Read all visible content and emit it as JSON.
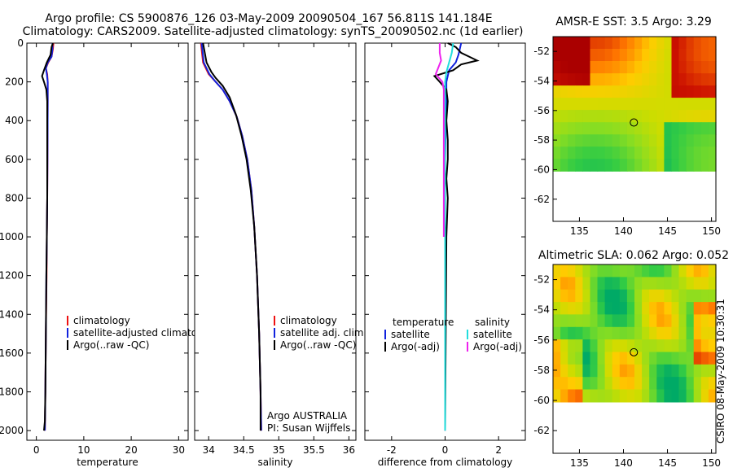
{
  "title_line1": "Argo profile: CS 5900876_126 03-May-2009 20090504_167 56.811S 141.184E",
  "title_line2": "Climatology: CARS2009. Satellite-adjusted climatology: synTS_20090502.nc (1d earlier)",
  "credit": "CSIRO 08-May-2009 10:30:31",
  "colors": {
    "red": "#ee1111",
    "blue": "#1122dd",
    "black": "#000000",
    "cyan": "#22dddd",
    "magenta": "#ee22ee"
  },
  "chart_data": [
    {
      "type": "line",
      "id": "temperature",
      "xlabel": "temperature",
      "ylabel": "",
      "xlim": [
        -2,
        32
      ],
      "ylim": [
        0,
        2050
      ],
      "xticks": [
        0,
        10,
        20,
        30
      ],
      "yticks": [
        0,
        200,
        400,
        600,
        800,
        1000,
        1200,
        1400,
        1600,
        1800,
        2000
      ],
      "legend": {
        "position": "lower-right",
        "entries": [
          "climatology",
          "satellite-adjusted climatology",
          "Argo(..raw -QC)"
        ]
      },
      "series": [
        {
          "name": "climatology",
          "color": "red",
          "x": [
            3.6,
            3.5,
            3.2,
            2.5,
            2.0,
            2.3,
            2.4,
            2.4,
            2.35,
            2.3,
            2.2,
            2.15,
            2.0,
            1.9,
            1.8
          ],
          "y": [
            0,
            30,
            70,
            100,
            130,
            160,
            200,
            300,
            600,
            800,
            1000,
            1200,
            1500,
            1800,
            2000
          ]
        },
        {
          "name": "satellite-adjusted climatology",
          "color": "blue",
          "x": [
            3.4,
            3.4,
            3.2,
            2.4,
            2.0,
            2.2,
            2.4,
            2.4,
            2.35,
            2.3,
            2.2,
            2.1,
            2.0,
            1.9,
            1.8
          ],
          "y": [
            0,
            30,
            70,
            100,
            130,
            160,
            200,
            300,
            600,
            800,
            1000,
            1200,
            1500,
            1800,
            2000
          ]
        },
        {
          "name": "Argo(..raw -QC)",
          "color": "black",
          "x": [
            3.5,
            3.2,
            3.0,
            2.2,
            1.6,
            1.2,
            1.6,
            2.1,
            2.3,
            2.3,
            2.3,
            2.2,
            2.1,
            2.0,
            1.9,
            1.8,
            1.6
          ],
          "y": [
            0,
            20,
            60,
            100,
            140,
            170,
            200,
            240,
            300,
            500,
            800,
            1000,
            1200,
            1500,
            1800,
            1950,
            2000
          ]
        }
      ]
    },
    {
      "type": "line",
      "id": "salinity",
      "xlabel": "salinity",
      "ylabel": "",
      "xlim": [
        33.8,
        36.1
      ],
      "ylim": [
        0,
        2050
      ],
      "xticks": [
        34,
        34.5,
        35,
        35.5,
        36
      ],
      "legend": {
        "position": "lower-right",
        "entries": [
          "climatology",
          "satellite adj. clim.",
          "Argo(..raw -QC)"
        ]
      },
      "annotations": [
        "Argo AUSTRALIA",
        "PI: Susan Wijffels"
      ],
      "series": [
        {
          "name": "climatology",
          "color": "red",
          "x": [
            33.89,
            33.92,
            34.0,
            34.1,
            34.2,
            34.3,
            34.4,
            34.48,
            34.55,
            34.61,
            34.65,
            34.69,
            34.72,
            34.74,
            34.75
          ],
          "y": [
            0,
            100,
            160,
            200,
            240,
            300,
            380,
            480,
            600,
            760,
            950,
            1200,
            1500,
            1800,
            2000
          ]
        },
        {
          "name": "satellite adj. clim.",
          "color": "blue",
          "x": [
            33.9,
            33.93,
            34.01,
            34.1,
            34.2,
            34.3,
            34.4,
            34.48,
            34.55,
            34.61,
            34.65,
            34.69,
            34.72,
            34.74,
            34.75
          ],
          "y": [
            0,
            100,
            160,
            200,
            240,
            300,
            380,
            480,
            600,
            760,
            950,
            1200,
            1500,
            1800,
            2000
          ]
        },
        {
          "name": "Argo(..raw -QC)",
          "color": "black",
          "x": [
            33.92,
            33.97,
            34.04,
            34.1,
            34.2,
            34.3,
            34.39,
            34.47,
            34.54,
            34.6,
            34.65,
            34.69,
            34.72,
            34.74,
            34.74
          ],
          "y": [
            0,
            100,
            150,
            180,
            220,
            280,
            370,
            480,
            600,
            760,
            950,
            1200,
            1500,
            1800,
            2000
          ]
        }
      ]
    },
    {
      "type": "line",
      "id": "difference",
      "xlabel": "difference from climatology",
      "ylabel": "",
      "xlim": [
        -3.0,
        3.0
      ],
      "ylim": [
        0,
        2050
      ],
      "xticks": [
        -2,
        0,
        2
      ],
      "legend": {
        "position": "lower-center",
        "groups": [
          {
            "heading": "temperature",
            "entries": [
              "satellite",
              "Argo(-adj)"
            ]
          },
          {
            "heading": "salinity",
            "entries": [
              "satellite",
              "Argo(-adj)"
            ]
          }
        ]
      },
      "series": [
        {
          "name": "temperature satellite",
          "color": "blue",
          "x": [
            0.6,
            0.55,
            0.5,
            0.4,
            0.15,
            0.05,
            0.05,
            0.0,
            0.0,
            0.0,
            0.0
          ],
          "y": [
            0,
            30,
            60,
            100,
            140,
            200,
            300,
            600,
            1000,
            1500,
            2000
          ]
        },
        {
          "name": "temperature Argo(-adj)",
          "color": "black",
          "x": [
            0.1,
            0.4,
            0.6,
            1.2,
            0.6,
            0.3,
            -0.4,
            -0.2,
            0.05,
            0.1,
            0.05,
            0.1,
            0.1,
            0.05,
            0.1,
            0.05,
            0.0
          ],
          "y": [
            0,
            20,
            50,
            90,
            110,
            140,
            170,
            200,
            240,
            300,
            400,
            500,
            600,
            700,
            800,
            1000,
            2000
          ]
        },
        {
          "name": "salinity satellite",
          "color": "cyan",
          "x": [
            0.3,
            0.25,
            0.15,
            0.05,
            0.0,
            0.0,
            0.0,
            0.0,
            0.0
          ],
          "y": [
            0,
            50,
            100,
            150,
            200,
            300,
            600,
            1000,
            2000
          ]
        },
        {
          "name": "salinity Argo(-adj)",
          "color": "magenta",
          "x": [
            -0.2,
            -0.2,
            -0.15,
            -0.35,
            -0.1,
            -0.05,
            -0.05,
            -0.05,
            -0.05
          ],
          "y": [
            0,
            50,
            90,
            160,
            200,
            240,
            300,
            600,
            1000
          ]
        }
      ]
    },
    {
      "type": "heatmap",
      "id": "sst_map",
      "title": "AMSR-E SST: 3.5 Argo: 3.29",
      "xlim": [
        132,
        150.5
      ],
      "ylim": [
        -63.5,
        -51
      ],
      "xticks": [
        135,
        140,
        145,
        150
      ],
      "yticks": [
        -52,
        -54,
        -56,
        -58,
        -60,
        -62
      ],
      "data_extent_lat": [
        -60.1,
        -51
      ],
      "marker": {
        "lon": 141.184,
        "lat": -56.811
      },
      "palette": [
        "#00aa66",
        "#33cc44",
        "#88dd22",
        "#ccdd00",
        "#ffcc00",
        "#ff7700",
        "#cc1100",
        "#aa0000"
      ],
      "grid_rows": 11,
      "grid_cols": 22
    },
    {
      "type": "heatmap",
      "id": "sla_map",
      "title": "Altimetric SLA: 0.062 Argo: 0.052",
      "xlim": [
        132,
        150.5
      ],
      "ylim": [
        -63.5,
        -51
      ],
      "xticks": [
        135,
        140,
        145,
        150
      ],
      "yticks": [
        -52,
        -54,
        -56,
        -58,
        -60,
        -62
      ],
      "data_extent_lat": [
        -60.1,
        -51
      ],
      "marker": {
        "lon": 141.184,
        "lat": -56.811
      },
      "palette": [
        "#00aa66",
        "#33cc44",
        "#88dd22",
        "#ccdd00",
        "#ffcc00",
        "#ff7700",
        "#cc1100",
        "#1133cc"
      ],
      "grid_rows": 11,
      "grid_cols": 22
    }
  ]
}
